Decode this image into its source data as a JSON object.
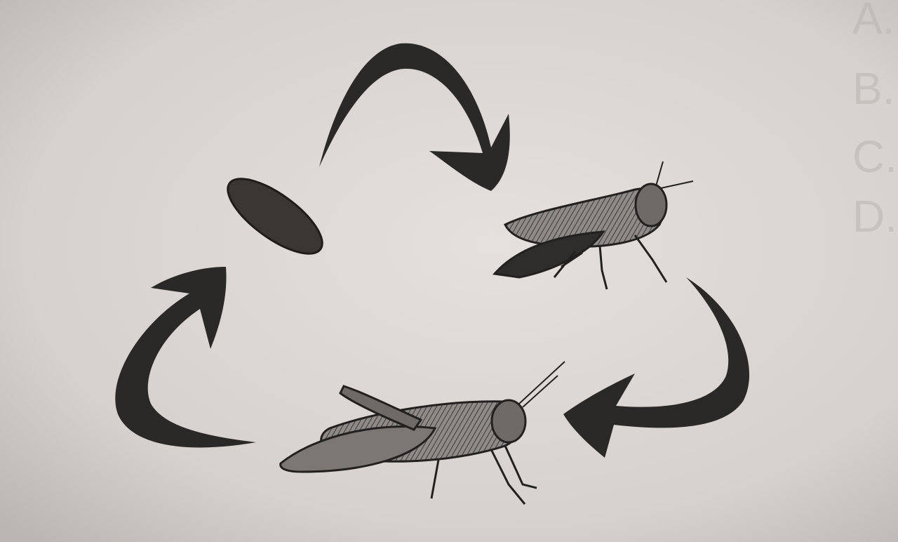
{
  "bleed_through": {
    "markers": [
      "A.",
      "B.",
      "C.",
      "D."
    ]
  }
}
